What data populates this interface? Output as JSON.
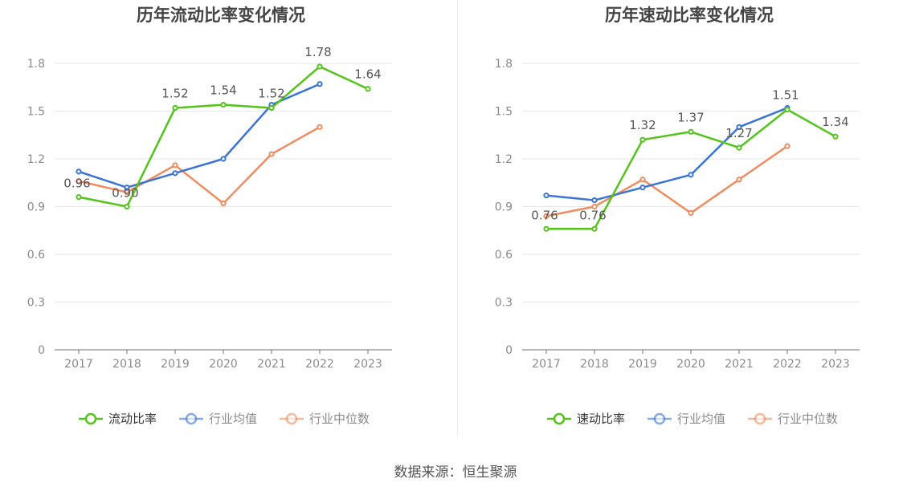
{
  "chart_data": [
    {
      "type": "line",
      "title": "历年流动比率变化情况",
      "categories": [
        "2017",
        "2018",
        "2019",
        "2020",
        "2021",
        "2022",
        "2023"
      ],
      "ylim": [
        0,
        1.8
      ],
      "yticks": [
        "0",
        "0.3",
        "0.6",
        "0.9",
        "1.2",
        "1.5",
        "1.8"
      ],
      "grid": true,
      "legend_position": "bottom-center",
      "series": [
        {
          "name": "流动比率",
          "color": "#52c41a",
          "values": [
            0.96,
            0.9,
            1.52,
            1.54,
            1.52,
            1.78,
            1.64
          ],
          "labels": [
            "0.96",
            "0.90",
            "1.52",
            "1.54",
            "1.52",
            "1.78",
            "1.64"
          ]
        },
        {
          "name": "行业均值",
          "color": "#3a74d8",
          "values": [
            1.12,
            1.02,
            1.11,
            1.2,
            1.54,
            1.67,
            null
          ]
        },
        {
          "name": "行业中位数",
          "color": "#f08c5f",
          "values": [
            1.06,
            0.99,
            1.16,
            0.92,
            1.23,
            1.4,
            null
          ]
        }
      ]
    },
    {
      "type": "line",
      "title": "历年速动比率变化情况",
      "categories": [
        "2017",
        "2018",
        "2019",
        "2020",
        "2021",
        "2022",
        "2023"
      ],
      "ylim": [
        0,
        1.8
      ],
      "yticks": [
        "0",
        "0.3",
        "0.6",
        "0.9",
        "1.2",
        "1.5",
        "1.8"
      ],
      "grid": true,
      "legend_position": "bottom-center",
      "series": [
        {
          "name": "速动比率",
          "color": "#52c41a",
          "values": [
            0.76,
            0.76,
            1.32,
            1.37,
            1.27,
            1.51,
            1.34
          ],
          "labels": [
            "0.76",
            "0.76",
            "1.32",
            "1.37",
            "1.27",
            "1.51",
            "1.34"
          ]
        },
        {
          "name": "行业均值",
          "color": "#3a74d8",
          "values": [
            0.97,
            0.94,
            1.02,
            1.1,
            1.4,
            1.52,
            null
          ]
        },
        {
          "name": "行业中位数",
          "color": "#f08c5f",
          "values": [
            0.84,
            0.9,
            1.07,
            0.86,
            1.07,
            1.28,
            null
          ]
        }
      ]
    }
  ],
  "footer": "数据来源：恒生聚源"
}
